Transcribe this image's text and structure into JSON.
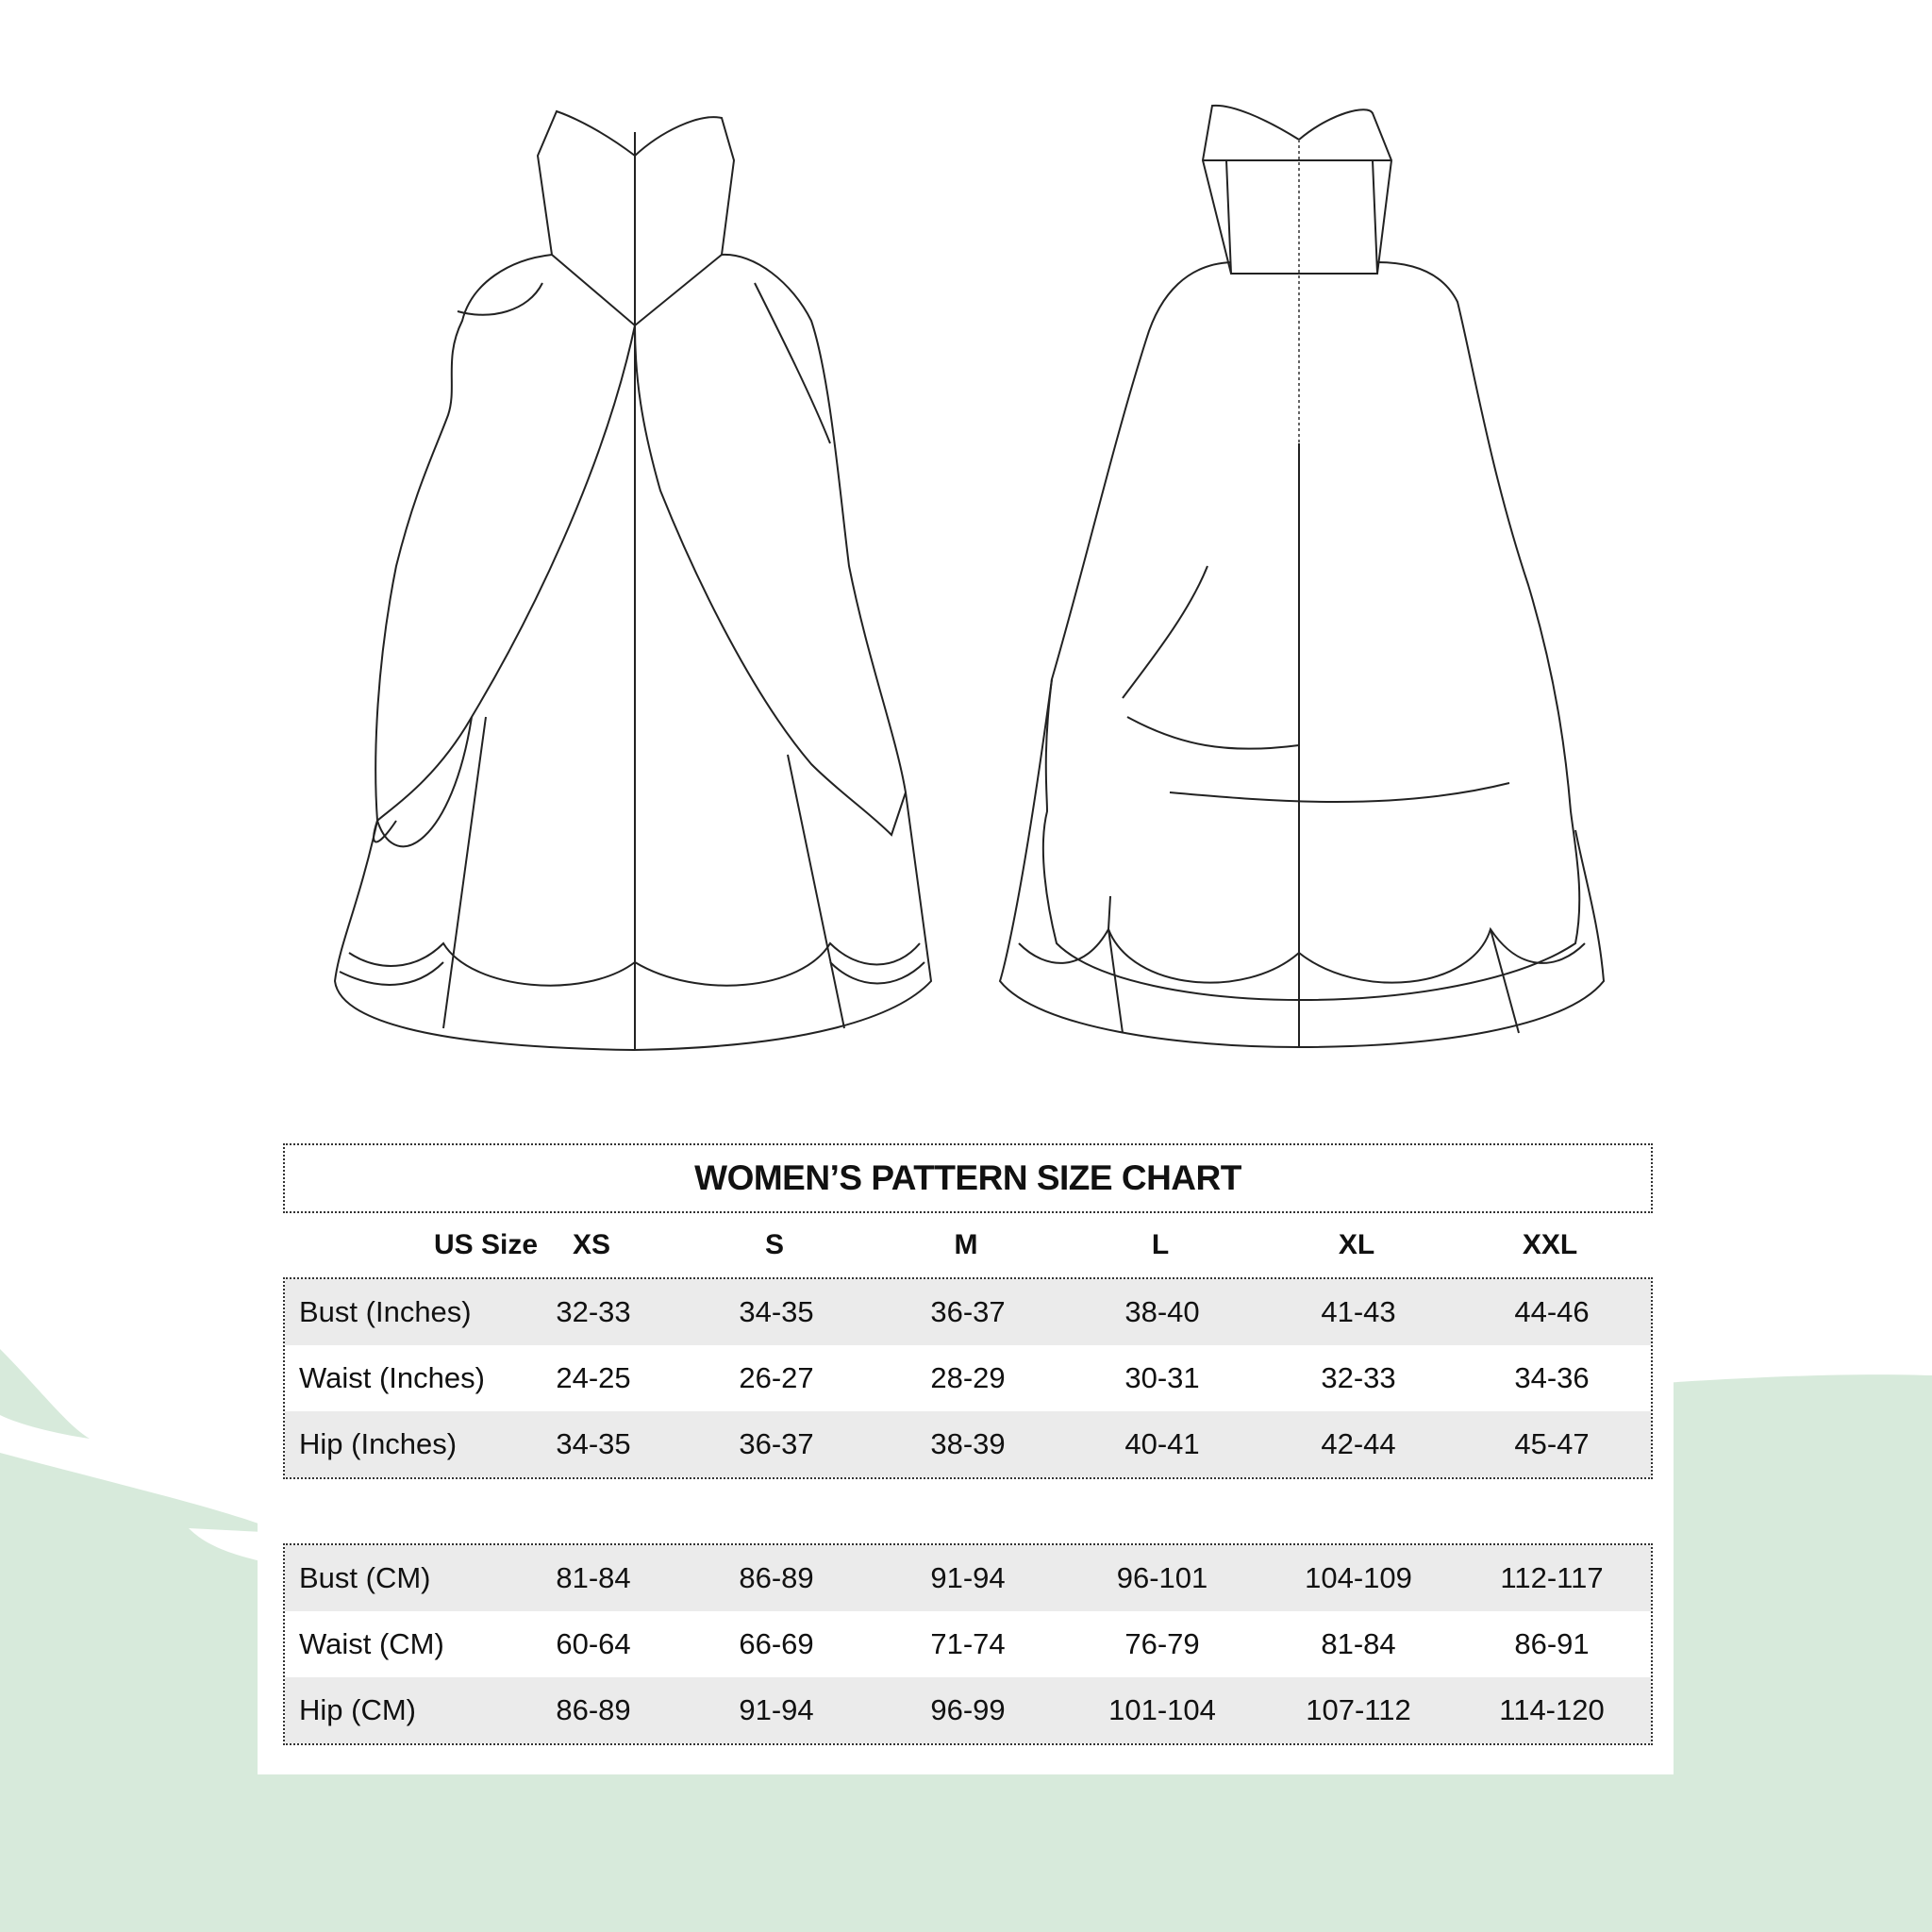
{
  "colors": {
    "background_green": "#d7eadb",
    "row_shade": "#ebebeb",
    "text": "#111111"
  },
  "illustrations": [
    "front-view-ball-gown-drawing",
    "back-view-ball-gown-drawing"
  ],
  "chart": {
    "title": "WOMEN’S PATTERN SIZE CHART",
    "header": [
      "US Size",
      "XS",
      "S",
      "M",
      "L",
      "XL",
      "XXL"
    ],
    "inches": [
      {
        "label": "Bust (Inches)",
        "values": [
          "32-33",
          "34-35",
          "36-37",
          "38-40",
          "41-43",
          "44-46"
        ]
      },
      {
        "label": "Waist (Inches)",
        "values": [
          "24-25",
          "26-27",
          "28-29",
          "30-31",
          "32-33",
          "34-36"
        ]
      },
      {
        "label": "Hip (Inches)",
        "values": [
          "34-35",
          "36-37",
          "38-39",
          "40-41",
          "42-44",
          "45-47"
        ]
      }
    ],
    "cm": [
      {
        "label": "Bust (CM)",
        "values": [
          "81-84",
          "86-89",
          "91-94",
          "96-101",
          "104-109",
          "112-117"
        ]
      },
      {
        "label": "Waist (CM)",
        "values": [
          "60-64",
          "66-69",
          "71-74",
          "76-79",
          "81-84",
          "86-91"
        ]
      },
      {
        "label": "Hip (CM)",
        "values": [
          "86-89",
          "91-94",
          "96-99",
          "101-104",
          "107-112",
          "114-120"
        ]
      }
    ]
  }
}
